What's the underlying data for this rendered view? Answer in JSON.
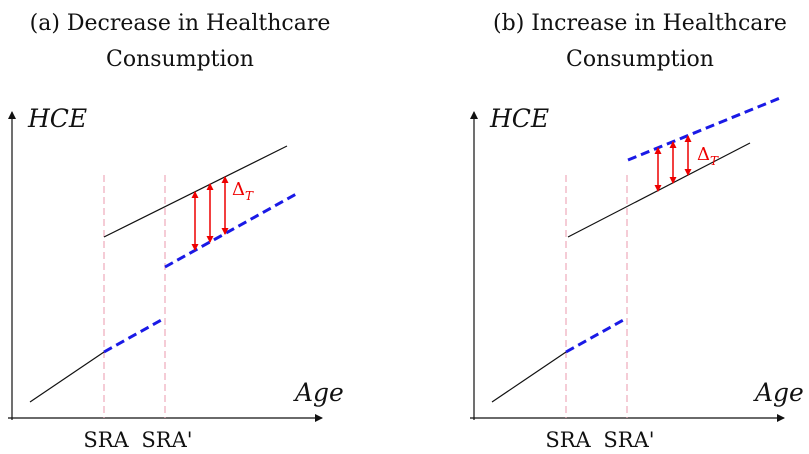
{
  "panels": [
    {
      "title": [
        "(a) Decrease in Healthcare",
        "Consumption"
      ],
      "y_label": "HCE",
      "x_label": "Age",
      "ticks": [
        "SRA",
        "SRA'"
      ],
      "delta": "Δ",
      "delta_sub": "T"
    },
    {
      "title": [
        "(b) Increase in Healthcare",
        "Consumption"
      ],
      "y_label": "HCE",
      "x_label": "Age",
      "ticks": [
        "SRA",
        "SRA'"
      ],
      "delta": "Δ",
      "delta_sub": "T"
    }
  ]
}
